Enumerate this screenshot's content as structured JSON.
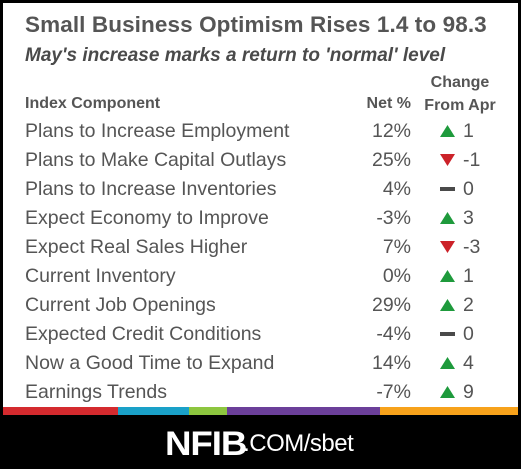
{
  "title": "Small Business Optimism Rises 1.4 to 98.3",
  "subtitle": "May's increase marks a return to 'normal' level",
  "headers": {
    "component": "Index Component",
    "net": "Net %",
    "change_line1": "Change",
    "change_line2": "From Apr"
  },
  "rows": [
    {
      "name": "Plans to Increase Employment",
      "net": "12%",
      "direction": "up",
      "change": "1"
    },
    {
      "name": "Plans to Make Capital Outlays",
      "net": "25%",
      "direction": "down",
      "change": "-1"
    },
    {
      "name": "Plans to Increase Inventories",
      "net": "4%",
      "direction": "flat",
      "change": "0"
    },
    {
      "name": "Expect Economy to Improve",
      "net": "-3%",
      "direction": "up",
      "change": "3"
    },
    {
      "name": "Expect Real Sales Higher",
      "net": "7%",
      "direction": "down",
      "change": "-3"
    },
    {
      "name": "Current Inventory",
      "net": "0%",
      "direction": "up",
      "change": "1"
    },
    {
      "name": "Current Job Openings",
      "net": "29%",
      "direction": "up",
      "change": "2"
    },
    {
      "name": "Expected Credit Conditions",
      "net": "-4%",
      "direction": "flat",
      "change": "0"
    },
    {
      "name": "Now a Good Time to Expand",
      "net": "14%",
      "direction": "up",
      "change": "4"
    },
    {
      "name": "Earnings Trends",
      "net": "-7%",
      "direction": "up",
      "change": "9"
    }
  ],
  "colors": {
    "up": "#1e9a3c",
    "down": "#cc2229",
    "flat": "#4a4a4a",
    "strip": [
      "#d42a2e",
      "#1aa1c8",
      "#8dc63f",
      "#6b3f99",
      "#f7a21b"
    ]
  },
  "strip_segments": [
    0.224,
    0.137,
    0.074,
    0.297,
    0.268
  ],
  "footer": {
    "brand": "NFIB",
    "suffix": ".COM/sbet"
  }
}
